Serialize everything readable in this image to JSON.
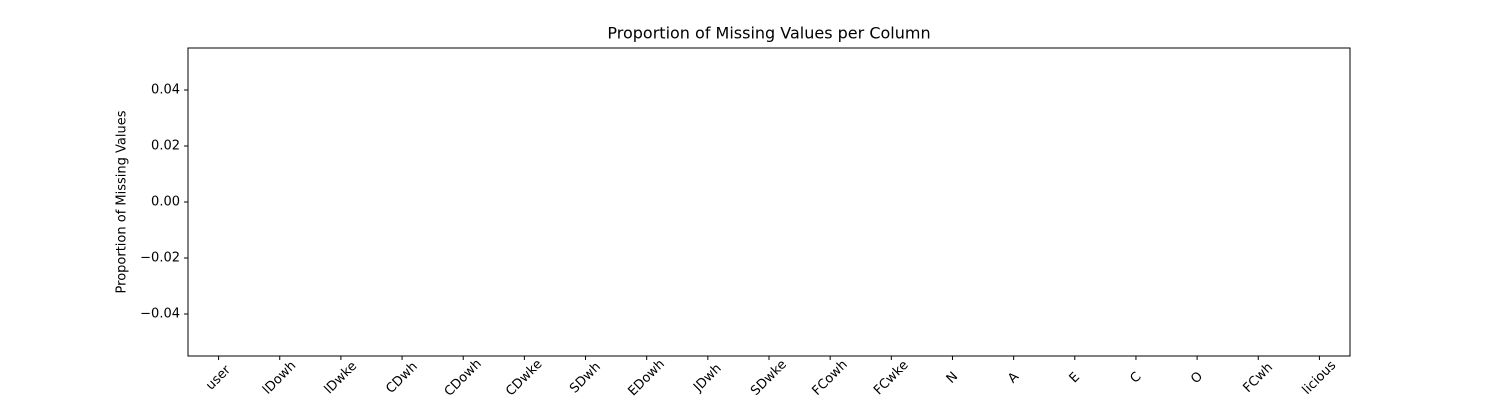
{
  "chart_data": {
    "type": "bar",
    "title": "Proportion of Missing Values per Column",
    "y_label": "Proportion of Missing Values",
    "categories": [
      "user",
      "lDowh",
      "lDwke",
      "CDwh",
      "CDowh",
      "CDwke",
      "SDwh",
      "EDowh",
      "JDwh",
      "SDwke",
      "FCowh",
      "FCwke",
      "N",
      "A",
      "E",
      "C",
      "O",
      "FCwh",
      "licious"
    ],
    "values": [
      0,
      0,
      0,
      0,
      0,
      0,
      0,
      0,
      0,
      0,
      0,
      0,
      0,
      0,
      0,
      0,
      0,
      0,
      0
    ],
    "color": "#1f77b4",
    "ylim": [
      -0.055,
      0.055
    ],
    "yticks": [
      {
        "value": -0.04,
        "label": "−0.04"
      },
      {
        "value": -0.02,
        "label": "−0.02"
      },
      {
        "value": 0,
        "label": "0.00"
      },
      0.02,
      0.04
    ],
    "grid": false
  }
}
